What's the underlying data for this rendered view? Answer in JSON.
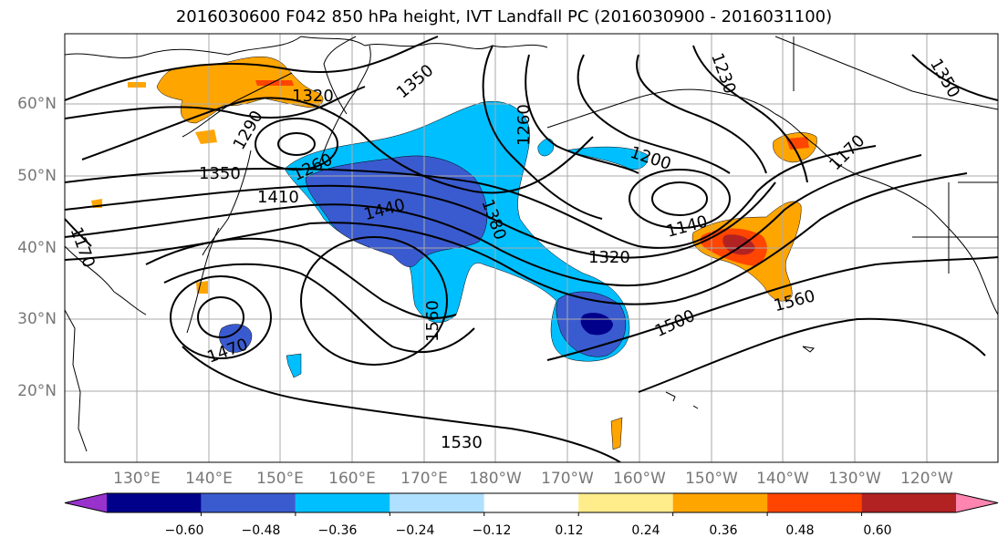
{
  "title": "2016030600 F042 850 hPa height, IVT Landfall PC (2016030900 - 2016031100)",
  "lat_labels": [
    "60°N",
    "50°N",
    "40°N",
    "30°N",
    "20°N"
  ],
  "lon_labels": [
    "130°E",
    "140°E",
    "150°E",
    "160°E",
    "170°E",
    "180°W",
    "170°W",
    "160°W",
    "150°W",
    "140°W",
    "130°W",
    "120°W"
  ],
  "contour_labels": [
    "1320",
    "1350",
    "1290",
    "1260",
    "1350",
    "1410",
    "1440",
    "1380",
    "1260",
    "1230",
    "1200",
    "1140",
    "1320",
    "1500",
    "1560",
    "1560",
    "1470",
    "1530",
    "1350",
    "1170",
    "1170"
  ],
  "colorbar": {
    "ticks": [
      "−0.60",
      "−0.48",
      "−0.36",
      "−0.24",
      "−0.12",
      "0.12",
      "0.24",
      "0.36",
      "0.48",
      "0.60"
    ],
    "colors": [
      "#9932cc",
      "#00008b",
      "#3a5bcf",
      "#00bfff",
      "#b0e0ff",
      "#ffffff",
      "#ffec8b",
      "#ffa500",
      "#ff4500",
      "#b22222",
      "#ff85b0"
    ]
  }
}
